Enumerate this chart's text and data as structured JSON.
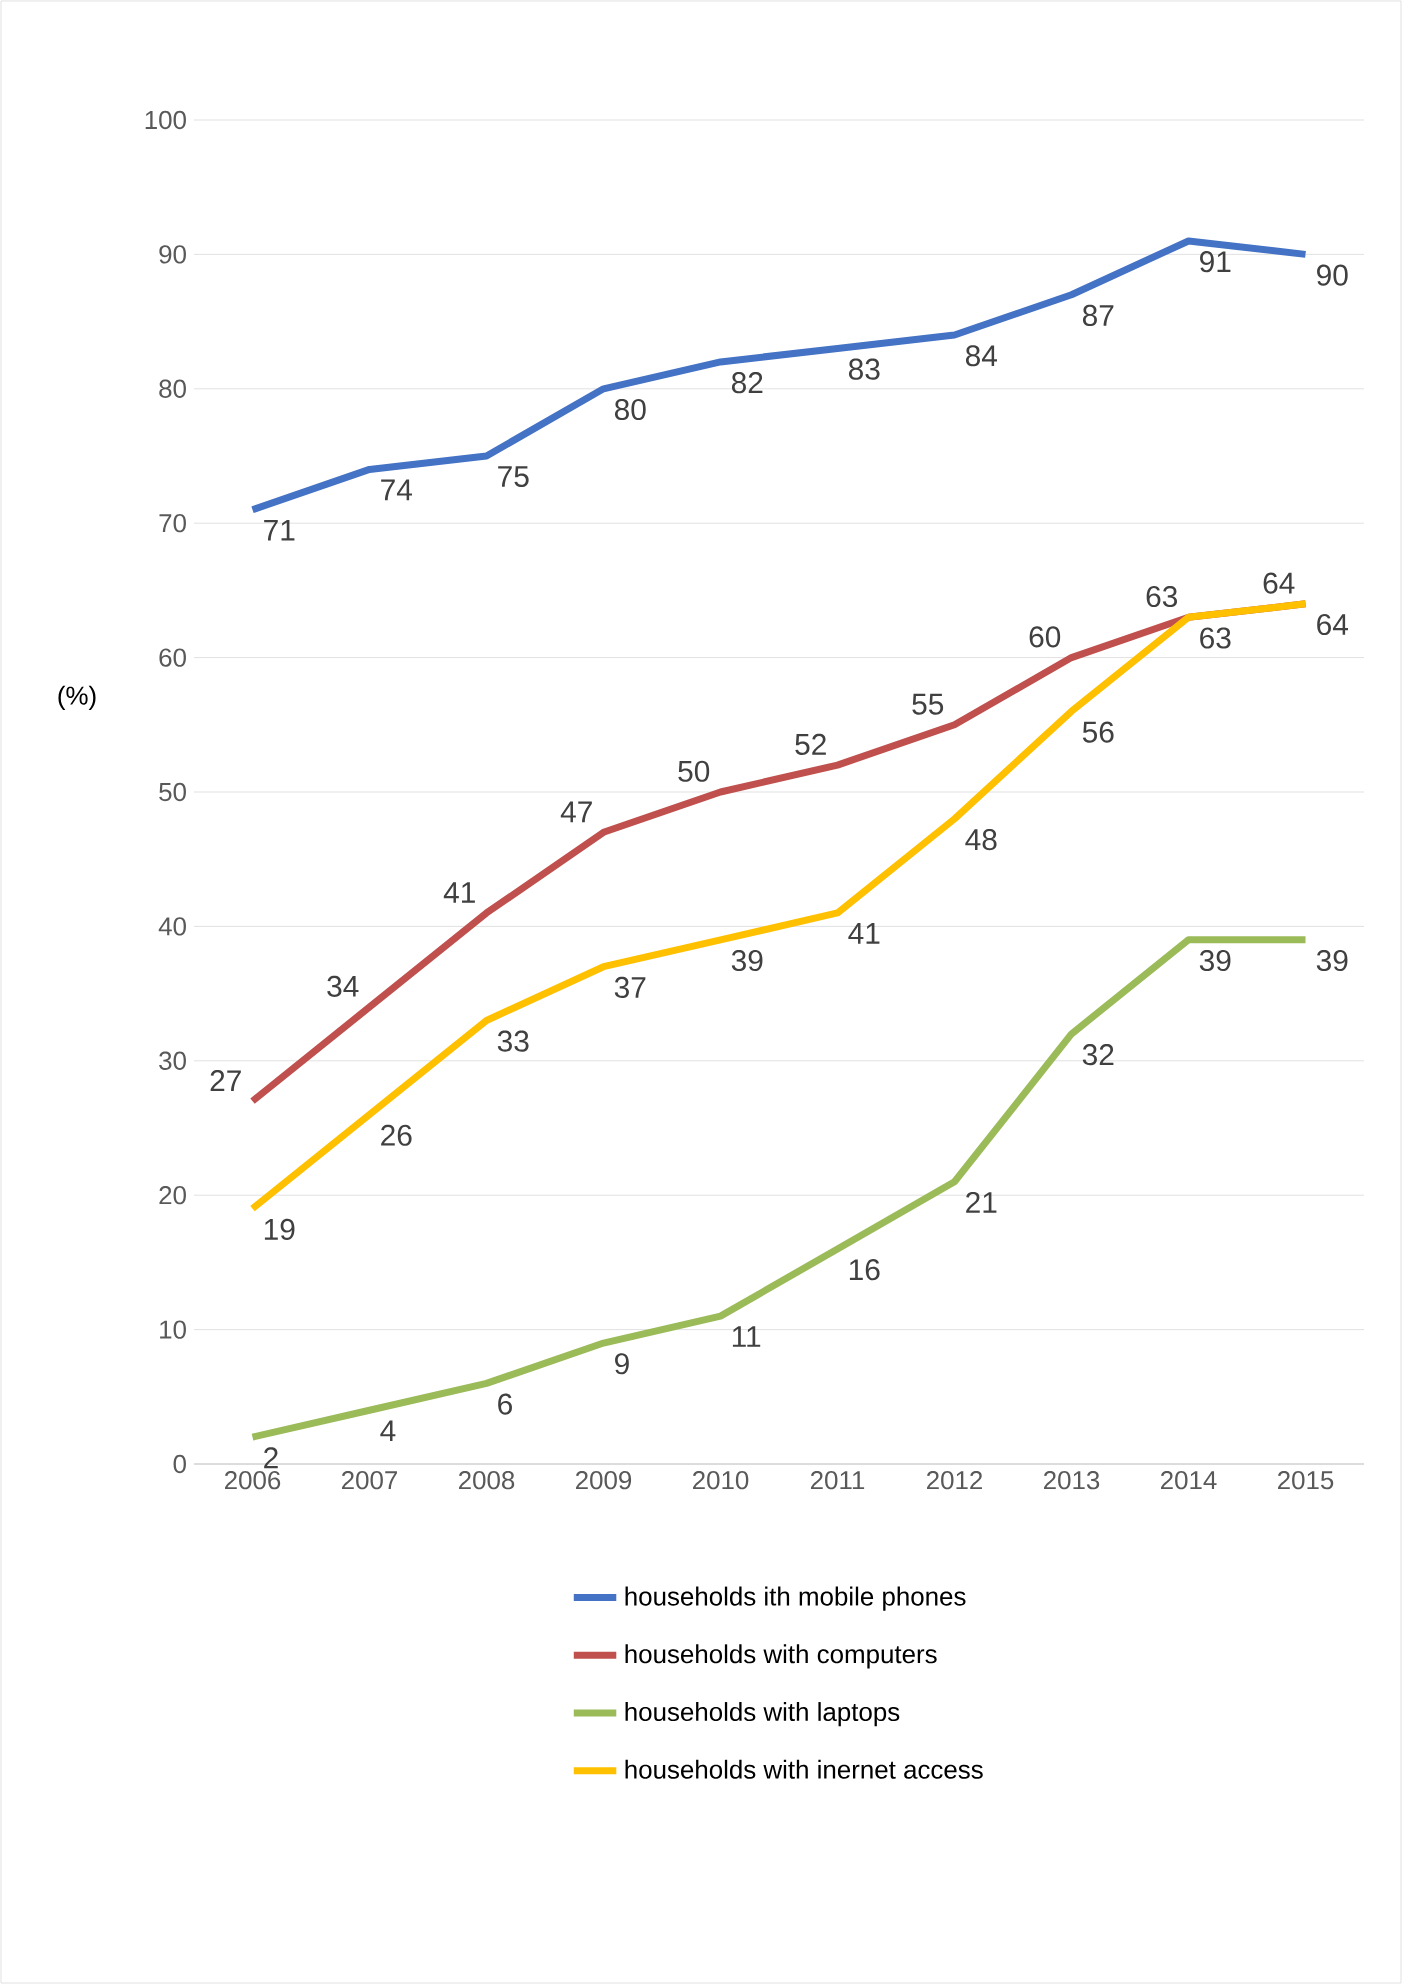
{
  "chart_data": {
    "type": "line",
    "ylabel": "(%)",
    "categories": [
      "2006",
      "2007",
      "2008",
      "2009",
      "2010",
      "2011",
      "2012",
      "2013",
      "2014",
      "2015"
    ],
    "series": [
      {
        "name": "households ith mobile phones",
        "color": "#4472c4",
        "values": [
          71,
          74,
          75,
          80,
          82,
          83,
          84,
          87,
          91,
          90
        ]
      },
      {
        "name": "households with computers",
        "color": "#c0504d",
        "values": [
          27,
          34,
          41,
          47,
          50,
          52,
          55,
          60,
          63,
          64
        ]
      },
      {
        "name": "households with laptops",
        "color": "#9bbb59",
        "values": [
          2,
          4,
          6,
          9,
          11,
          16,
          21,
          32,
          39,
          39
        ]
      },
      {
        "name": "households with inernet access",
        "color": "#ffc000",
        "values": [
          19,
          26,
          33,
          37,
          39,
          41,
          48,
          56,
          63,
          64
        ]
      }
    ],
    "ylim": [
      0,
      100
    ],
    "yticks": [
      0,
      10,
      20,
      30,
      40,
      50,
      60,
      70,
      80,
      90,
      100
    ],
    "grid": "y",
    "legend": "bottom",
    "data_labels": true,
    "marker": "none",
    "line_style": "solid"
  }
}
